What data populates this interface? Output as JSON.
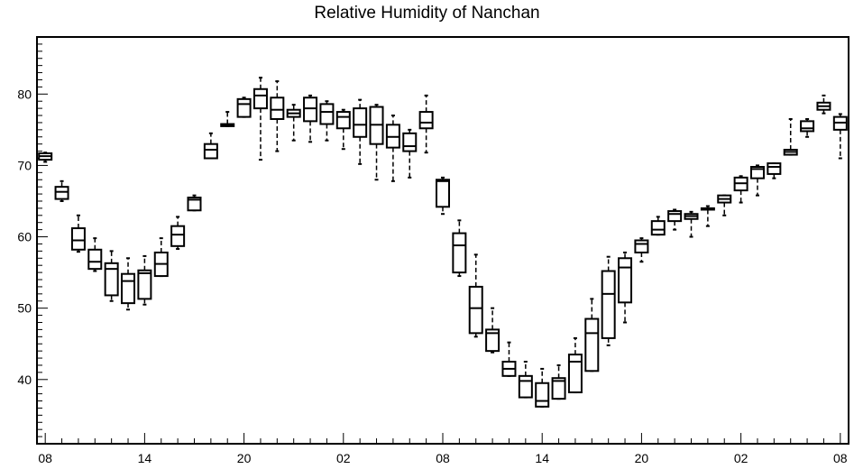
{
  "chart_data": {
    "type": "box",
    "title": "Relative Humidity of Nanchan",
    "xlabel": "",
    "ylabel": "",
    "ylim": [
      31,
      88
    ],
    "xlim": [
      -0.5,
      48.5
    ],
    "grid": false,
    "legend": "none",
    "y_ticks": [
      40,
      50,
      60,
      70,
      80
    ],
    "x_ticks": [
      {
        "x": 0,
        "label": "08"
      },
      {
        "x": 6,
        "label": "14"
      },
      {
        "x": 12,
        "label": "20"
      },
      {
        "x": 18,
        "label": "02"
      },
      {
        "x": 24,
        "label": "08"
      },
      {
        "x": 30,
        "label": "14"
      },
      {
        "x": 36,
        "label": "20"
      },
      {
        "x": 42,
        "label": "02"
      },
      {
        "x": 48,
        "label": "08"
      }
    ],
    "boxes": [
      {
        "x": 0,
        "q1": 70.8,
        "median": 71.3,
        "q3": 71.7,
        "min": 70.5,
        "max": 71.8
      },
      {
        "x": 1,
        "q1": 65.3,
        "median": 66.3,
        "q3": 67.0,
        "min": 65.0,
        "max": 67.8
      },
      {
        "x": 2,
        "q1": 58.2,
        "median": 59.5,
        "q3": 61.2,
        "min": 57.9,
        "max": 63.0
      },
      {
        "x": 3,
        "q1": 55.5,
        "median": 56.5,
        "q3": 58.2,
        "min": 55.2,
        "max": 59.8
      },
      {
        "x": 4,
        "q1": 51.8,
        "median": 55.5,
        "q3": 56.3,
        "min": 51.0,
        "max": 58.0
      },
      {
        "x": 5,
        "q1": 50.7,
        "median": 53.8,
        "q3": 54.8,
        "min": 49.8,
        "max": 57.0
      },
      {
        "x": 6,
        "q1": 51.3,
        "median": 54.9,
        "q3": 55.3,
        "min": 50.5,
        "max": 57.3
      },
      {
        "x": 7,
        "q1": 54.5,
        "median": 56.2,
        "q3": 57.8,
        "min": 54.5,
        "max": 59.8
      },
      {
        "x": 8,
        "q1": 58.7,
        "median": 60.3,
        "q3": 61.5,
        "min": 58.3,
        "max": 62.8
      },
      {
        "x": 9,
        "q1": 63.7,
        "median": 65.2,
        "q3": 65.5,
        "min": 63.7,
        "max": 65.8
      },
      {
        "x": 10,
        "q1": 71.0,
        "median": 72.2,
        "q3": 73.0,
        "min": 71.0,
        "max": 74.5
      },
      {
        "x": 11,
        "q1": 75.5,
        "median": 75.7,
        "q3": 75.8,
        "min": 75.5,
        "max": 77.5
      },
      {
        "x": 12,
        "q1": 76.8,
        "median": 78.6,
        "q3": 79.3,
        "min": 76.8,
        "max": 79.5
      },
      {
        "x": 13,
        "q1": 78.0,
        "median": 79.8,
        "q3": 80.7,
        "min": 70.8,
        "max": 82.3
      },
      {
        "x": 14,
        "q1": 76.5,
        "median": 77.8,
        "q3": 79.5,
        "min": 72.0,
        "max": 81.8
      },
      {
        "x": 15,
        "q1": 76.8,
        "median": 77.3,
        "q3": 77.8,
        "min": 73.5,
        "max": 78.5
      },
      {
        "x": 16,
        "q1": 76.2,
        "median": 78.0,
        "q3": 79.5,
        "min": 73.3,
        "max": 79.8
      },
      {
        "x": 17,
        "q1": 75.8,
        "median": 77.5,
        "q3": 78.6,
        "min": 73.5,
        "max": 79.0
      },
      {
        "x": 18,
        "q1": 75.2,
        "median": 76.8,
        "q3": 77.5,
        "min": 72.3,
        "max": 77.8
      },
      {
        "x": 19,
        "q1": 74.0,
        "median": 75.7,
        "q3": 78.0,
        "min": 70.2,
        "max": 79.2
      },
      {
        "x": 20,
        "q1": 73.0,
        "median": 75.7,
        "q3": 78.2,
        "min": 68.0,
        "max": 78.5
      },
      {
        "x": 21,
        "q1": 72.5,
        "median": 74.0,
        "q3": 75.7,
        "min": 67.8,
        "max": 77.0
      },
      {
        "x": 22,
        "q1": 72.0,
        "median": 72.7,
        "q3": 74.5,
        "min": 68.3,
        "max": 75.0
      },
      {
        "x": 23,
        "q1": 75.2,
        "median": 76.0,
        "q3": 77.5,
        "min": 71.8,
        "max": 79.8
      },
      {
        "x": 24,
        "q1": 64.2,
        "median": 67.8,
        "q3": 68.0,
        "min": 63.2,
        "max": 68.3
      },
      {
        "x": 25,
        "q1": 55.0,
        "median": 58.8,
        "q3": 60.5,
        "min": 54.5,
        "max": 62.3
      },
      {
        "x": 26,
        "q1": 46.5,
        "median": 50.0,
        "q3": 53.0,
        "min": 46.0,
        "max": 57.5
      },
      {
        "x": 27,
        "q1": 44.0,
        "median": 46.5,
        "q3": 47.0,
        "min": 43.8,
        "max": 50.0
      },
      {
        "x": 28,
        "q1": 40.5,
        "median": 41.5,
        "q3": 42.5,
        "min": 40.5,
        "max": 45.2
      },
      {
        "x": 29,
        "q1": 37.5,
        "median": 39.8,
        "q3": 40.5,
        "min": 37.5,
        "max": 42.5
      },
      {
        "x": 30,
        "q1": 36.2,
        "median": 37.0,
        "q3": 39.5,
        "min": 36.2,
        "max": 41.5
      },
      {
        "x": 31,
        "q1": 37.3,
        "median": 39.8,
        "q3": 40.2,
        "min": 37.3,
        "max": 42.0
      },
      {
        "x": 32,
        "q1": 38.2,
        "median": 42.5,
        "q3": 43.5,
        "min": 38.2,
        "max": 45.8
      },
      {
        "x": 33,
        "q1": 41.2,
        "median": 46.5,
        "q3": 48.5,
        "min": 41.2,
        "max": 51.3
      },
      {
        "x": 34,
        "q1": 45.8,
        "median": 52.0,
        "q3": 55.2,
        "min": 44.8,
        "max": 57.2
      },
      {
        "x": 35,
        "q1": 50.8,
        "median": 55.7,
        "q3": 57.0,
        "min": 48.0,
        "max": 57.8
      },
      {
        "x": 36,
        "q1": 57.8,
        "median": 59.0,
        "q3": 59.5,
        "min": 56.5,
        "max": 59.8
      },
      {
        "x": 37,
        "q1": 60.3,
        "median": 61.0,
        "q3": 62.2,
        "min": 60.3,
        "max": 62.8
      },
      {
        "x": 38,
        "q1": 62.2,
        "median": 63.2,
        "q3": 63.6,
        "min": 61.0,
        "max": 63.8
      },
      {
        "x": 39,
        "q1": 62.5,
        "median": 62.9,
        "q3": 63.2,
        "min": 60.0,
        "max": 63.5
      },
      {
        "x": 40,
        "q1": 63.8,
        "median": 63.9,
        "q3": 64.0,
        "min": 61.5,
        "max": 64.3
      },
      {
        "x": 41,
        "q1": 64.8,
        "median": 65.3,
        "q3": 65.8,
        "min": 63.0,
        "max": 65.8
      },
      {
        "x": 42,
        "q1": 66.5,
        "median": 67.5,
        "q3": 68.3,
        "min": 64.8,
        "max": 68.5
      },
      {
        "x": 43,
        "q1": 68.2,
        "median": 69.5,
        "q3": 69.8,
        "min": 65.8,
        "max": 70.0
      },
      {
        "x": 44,
        "q1": 68.8,
        "median": 69.8,
        "q3": 70.3,
        "min": 68.2,
        "max": 70.3
      },
      {
        "x": 45,
        "q1": 71.5,
        "median": 71.9,
        "q3": 72.2,
        "min": 71.5,
        "max": 76.5
      },
      {
        "x": 46,
        "q1": 74.8,
        "median": 75.2,
        "q3": 76.2,
        "min": 74.0,
        "max": 76.5
      },
      {
        "x": 47,
        "q1": 77.8,
        "median": 78.3,
        "q3": 78.8,
        "min": 77.3,
        "max": 79.8
      },
      {
        "x": 48,
        "q1": 75.0,
        "median": 76.0,
        "q3": 76.8,
        "min": 71.0,
        "max": 77.2
      }
    ]
  }
}
